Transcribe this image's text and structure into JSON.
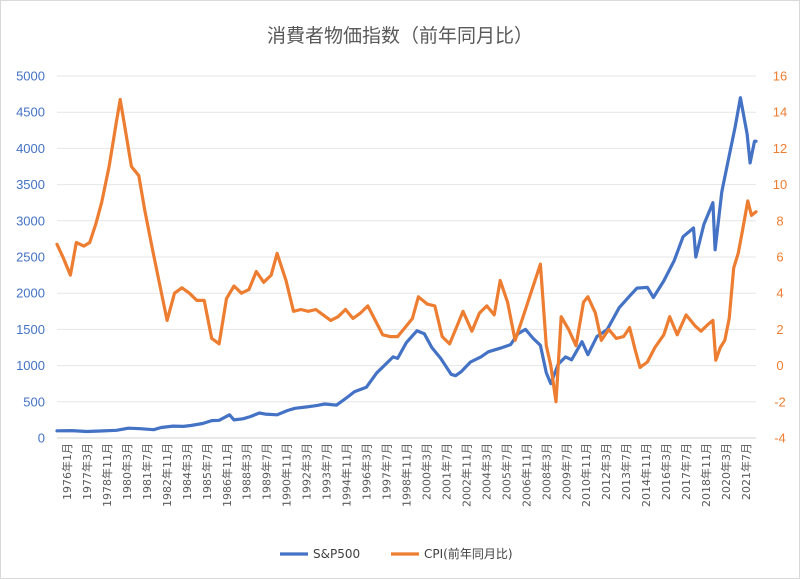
{
  "chart_data": {
    "type": "line",
    "title": "消費者物価指数（前年同月比）",
    "x_tick_labels": [
      "1976年1月",
      "1977年3月",
      "1978年11月",
      "1980年3月",
      "1981年7月",
      "1982年11月",
      "1984年3月",
      "1985年7月",
      "1986年11月",
      "1988年3月",
      "1989年7月",
      "1990年11月",
      "1992年3月",
      "1993年7月",
      "1994年11月",
      "1996年3月",
      "1997年7月",
      "1998年11月",
      "2000年3月",
      "2001年7月",
      "2002年11月",
      "2004年3月",
      "2005年7月",
      "2006年11月",
      "2008年3月",
      "2009年7月",
      "2010年11月",
      "2012年3月",
      "2013年7月",
      "2014年11月",
      "2016年3月",
      "2017年7月",
      "2018年11月",
      "2020年3月",
      "2021年7月"
    ],
    "y_left": {
      "min": 0,
      "max": 5000,
      "step": 500,
      "ticks": [
        "0",
        "500",
        "1000",
        "1500",
        "2000",
        "2500",
        "3000",
        "3500",
        "4000",
        "4500",
        "5000"
      ],
      "color": "#4472C4"
    },
    "y_right": {
      "min": -4,
      "max": 16,
      "step": 2,
      "ticks": [
        "-4",
        "-2",
        "0",
        "2",
        "4",
        "6",
        "8",
        "10",
        "12",
        "14",
        "16"
      ],
      "color": "#ED7D31"
    },
    "grid": true,
    "legend_position": "bottom",
    "series": [
      {
        "name": "S&P500",
        "axis": "left",
        "color": "#4472C4",
        "points": [
          [
            1976.0,
            100
          ],
          [
            1977.0,
            102
          ],
          [
            1978.0,
            90
          ],
          [
            1978.9,
            97
          ],
          [
            1980.0,
            106
          ],
          [
            1980.8,
            135
          ],
          [
            1981.6,
            128
          ],
          [
            1982.5,
            115
          ],
          [
            1983.0,
            145
          ],
          [
            1983.8,
            165
          ],
          [
            1984.5,
            160
          ],
          [
            1985.0,
            172
          ],
          [
            1985.8,
            200
          ],
          [
            1986.4,
            240
          ],
          [
            1986.9,
            245
          ],
          [
            1987.6,
            320
          ],
          [
            1987.9,
            250
          ],
          [
            1988.5,
            265
          ],
          [
            1989.0,
            295
          ],
          [
            1989.6,
            345
          ],
          [
            1990.0,
            330
          ],
          [
            1990.8,
            320
          ],
          [
            1991.5,
            380
          ],
          [
            1992.0,
            410
          ],
          [
            1992.8,
            430
          ],
          [
            1993.5,
            450
          ],
          [
            1994.0,
            470
          ],
          [
            1994.8,
            455
          ],
          [
            1995.5,
            560
          ],
          [
            1996.0,
            640
          ],
          [
            1996.8,
            700
          ],
          [
            1997.5,
            900
          ],
          [
            1998.0,
            1000
          ],
          [
            1998.6,
            1120
          ],
          [
            1998.9,
            1100
          ],
          [
            1999.5,
            1320
          ],
          [
            2000.2,
            1480
          ],
          [
            2000.7,
            1440
          ],
          [
            2001.2,
            1250
          ],
          [
            2001.8,
            1100
          ],
          [
            2002.5,
            880
          ],
          [
            2002.8,
            860
          ],
          [
            2003.2,
            920
          ],
          [
            2003.8,
            1050
          ],
          [
            2004.5,
            1120
          ],
          [
            2005.0,
            1190
          ],
          [
            2005.8,
            1240
          ],
          [
            2006.5,
            1290
          ],
          [
            2007.0,
            1440
          ],
          [
            2007.5,
            1500
          ],
          [
            2008.0,
            1380
          ],
          [
            2008.5,
            1280
          ],
          [
            2008.9,
            900
          ],
          [
            2009.2,
            750
          ],
          [
            2009.7,
            1020
          ],
          [
            2010.2,
            1120
          ],
          [
            2010.6,
            1080
          ],
          [
            2011.3,
            1330
          ],
          [
            2011.7,
            1150
          ],
          [
            2012.3,
            1400
          ],
          [
            2013.0,
            1500
          ],
          [
            2013.8,
            1800
          ],
          [
            2014.5,
            1960
          ],
          [
            2015.0,
            2070
          ],
          [
            2015.7,
            2080
          ],
          [
            2016.1,
            1940
          ],
          [
            2016.8,
            2170
          ],
          [
            2017.5,
            2450
          ],
          [
            2018.1,
            2780
          ],
          [
            2018.8,
            2900
          ],
          [
            2018.95,
            2500
          ],
          [
            2019.5,
            2950
          ],
          [
            2020.1,
            3250
          ],
          [
            2020.25,
            2600
          ],
          [
            2020.7,
            3400
          ],
          [
            2021.1,
            3800
          ],
          [
            2021.6,
            4300
          ],
          [
            2021.95,
            4700
          ],
          [
            2022.4,
            4200
          ],
          [
            2022.6,
            3800
          ],
          [
            2022.9,
            4100
          ],
          [
            2023.0,
            4100
          ]
        ]
      },
      {
        "name": "CPI(前年同月比)",
        "axis": "right",
        "color": "#ED7D31",
        "points": [
          [
            1976.0,
            6.7
          ],
          [
            1976.4,
            6.0
          ],
          [
            1976.9,
            5.0
          ],
          [
            1977.3,
            6.8
          ],
          [
            1977.8,
            6.6
          ],
          [
            1978.2,
            6.8
          ],
          [
            1978.6,
            7.8
          ],
          [
            1979.0,
            9.0
          ],
          [
            1979.5,
            11.0
          ],
          [
            1980.0,
            13.5
          ],
          [
            1980.25,
            14.7
          ],
          [
            1980.6,
            13.0
          ],
          [
            1981.0,
            11.0
          ],
          [
            1981.5,
            10.5
          ],
          [
            1981.9,
            8.6
          ],
          [
            1982.4,
            6.5
          ],
          [
            1982.9,
            4.5
          ],
          [
            1983.4,
            2.5
          ],
          [
            1983.9,
            4.0
          ],
          [
            1984.4,
            4.3
          ],
          [
            1984.9,
            4.0
          ],
          [
            1985.4,
            3.6
          ],
          [
            1985.9,
            3.6
          ],
          [
            1986.4,
            1.5
          ],
          [
            1986.9,
            1.2
          ],
          [
            1987.4,
            3.7
          ],
          [
            1987.9,
            4.4
          ],
          [
            1988.4,
            4.0
          ],
          [
            1988.9,
            4.2
          ],
          [
            1989.4,
            5.2
          ],
          [
            1989.9,
            4.6
          ],
          [
            1990.4,
            5.0
          ],
          [
            1990.8,
            6.2
          ],
          [
            1991.4,
            4.7
          ],
          [
            1991.9,
            3.0
          ],
          [
            1992.4,
            3.1
          ],
          [
            1992.9,
            3.0
          ],
          [
            1993.4,
            3.1
          ],
          [
            1993.9,
            2.8
          ],
          [
            1994.4,
            2.5
          ],
          [
            1994.9,
            2.7
          ],
          [
            1995.4,
            3.1
          ],
          [
            1995.9,
            2.6
          ],
          [
            1996.4,
            2.9
          ],
          [
            1996.9,
            3.3
          ],
          [
            1997.4,
            2.5
          ],
          [
            1997.9,
            1.7
          ],
          [
            1998.4,
            1.6
          ],
          [
            1998.9,
            1.6
          ],
          [
            1999.4,
            2.1
          ],
          [
            1999.9,
            2.6
          ],
          [
            2000.3,
            3.8
          ],
          [
            2000.9,
            3.4
          ],
          [
            2001.4,
            3.3
          ],
          [
            2001.9,
            1.6
          ],
          [
            2002.4,
            1.2
          ],
          [
            2002.9,
            2.2
          ],
          [
            2003.3,
            3.0
          ],
          [
            2003.9,
            1.9
          ],
          [
            2004.4,
            2.9
          ],
          [
            2004.9,
            3.3
          ],
          [
            2005.4,
            2.8
          ],
          [
            2005.8,
            4.7
          ],
          [
            2006.3,
            3.5
          ],
          [
            2006.8,
            1.4
          ],
          [
            2007.3,
            2.6
          ],
          [
            2007.9,
            4.1
          ],
          [
            2008.5,
            5.6
          ],
          [
            2008.9,
            1.1
          ],
          [
            2009.2,
            0.0
          ],
          [
            2009.55,
            -2.0
          ],
          [
            2009.9,
            2.7
          ],
          [
            2010.4,
            2.0
          ],
          [
            2010.9,
            1.1
          ],
          [
            2011.4,
            3.5
          ],
          [
            2011.7,
            3.8
          ],
          [
            2012.2,
            2.9
          ],
          [
            2012.6,
            1.4
          ],
          [
            2013.1,
            2.0
          ],
          [
            2013.6,
            1.5
          ],
          [
            2014.1,
            1.6
          ],
          [
            2014.5,
            2.1
          ],
          [
            2014.9,
            0.8
          ],
          [
            2015.2,
            -0.1
          ],
          [
            2015.7,
            0.2
          ],
          [
            2016.2,
            1.0
          ],
          [
            2016.8,
            1.7
          ],
          [
            2017.2,
            2.7
          ],
          [
            2017.7,
            1.7
          ],
          [
            2018.3,
            2.8
          ],
          [
            2018.9,
            2.2
          ],
          [
            2019.3,
            1.9
          ],
          [
            2019.8,
            2.3
          ],
          [
            2020.1,
            2.5
          ],
          [
            2020.3,
            0.3
          ],
          [
            2020.6,
            1.0
          ],
          [
            2020.9,
            1.4
          ],
          [
            2021.2,
            2.6
          ],
          [
            2021.5,
            5.4
          ],
          [
            2021.8,
            6.2
          ],
          [
            2022.1,
            7.5
          ],
          [
            2022.45,
            9.1
          ],
          [
            2022.7,
            8.3
          ],
          [
            2023.0,
            8.5
          ]
        ]
      }
    ]
  }
}
